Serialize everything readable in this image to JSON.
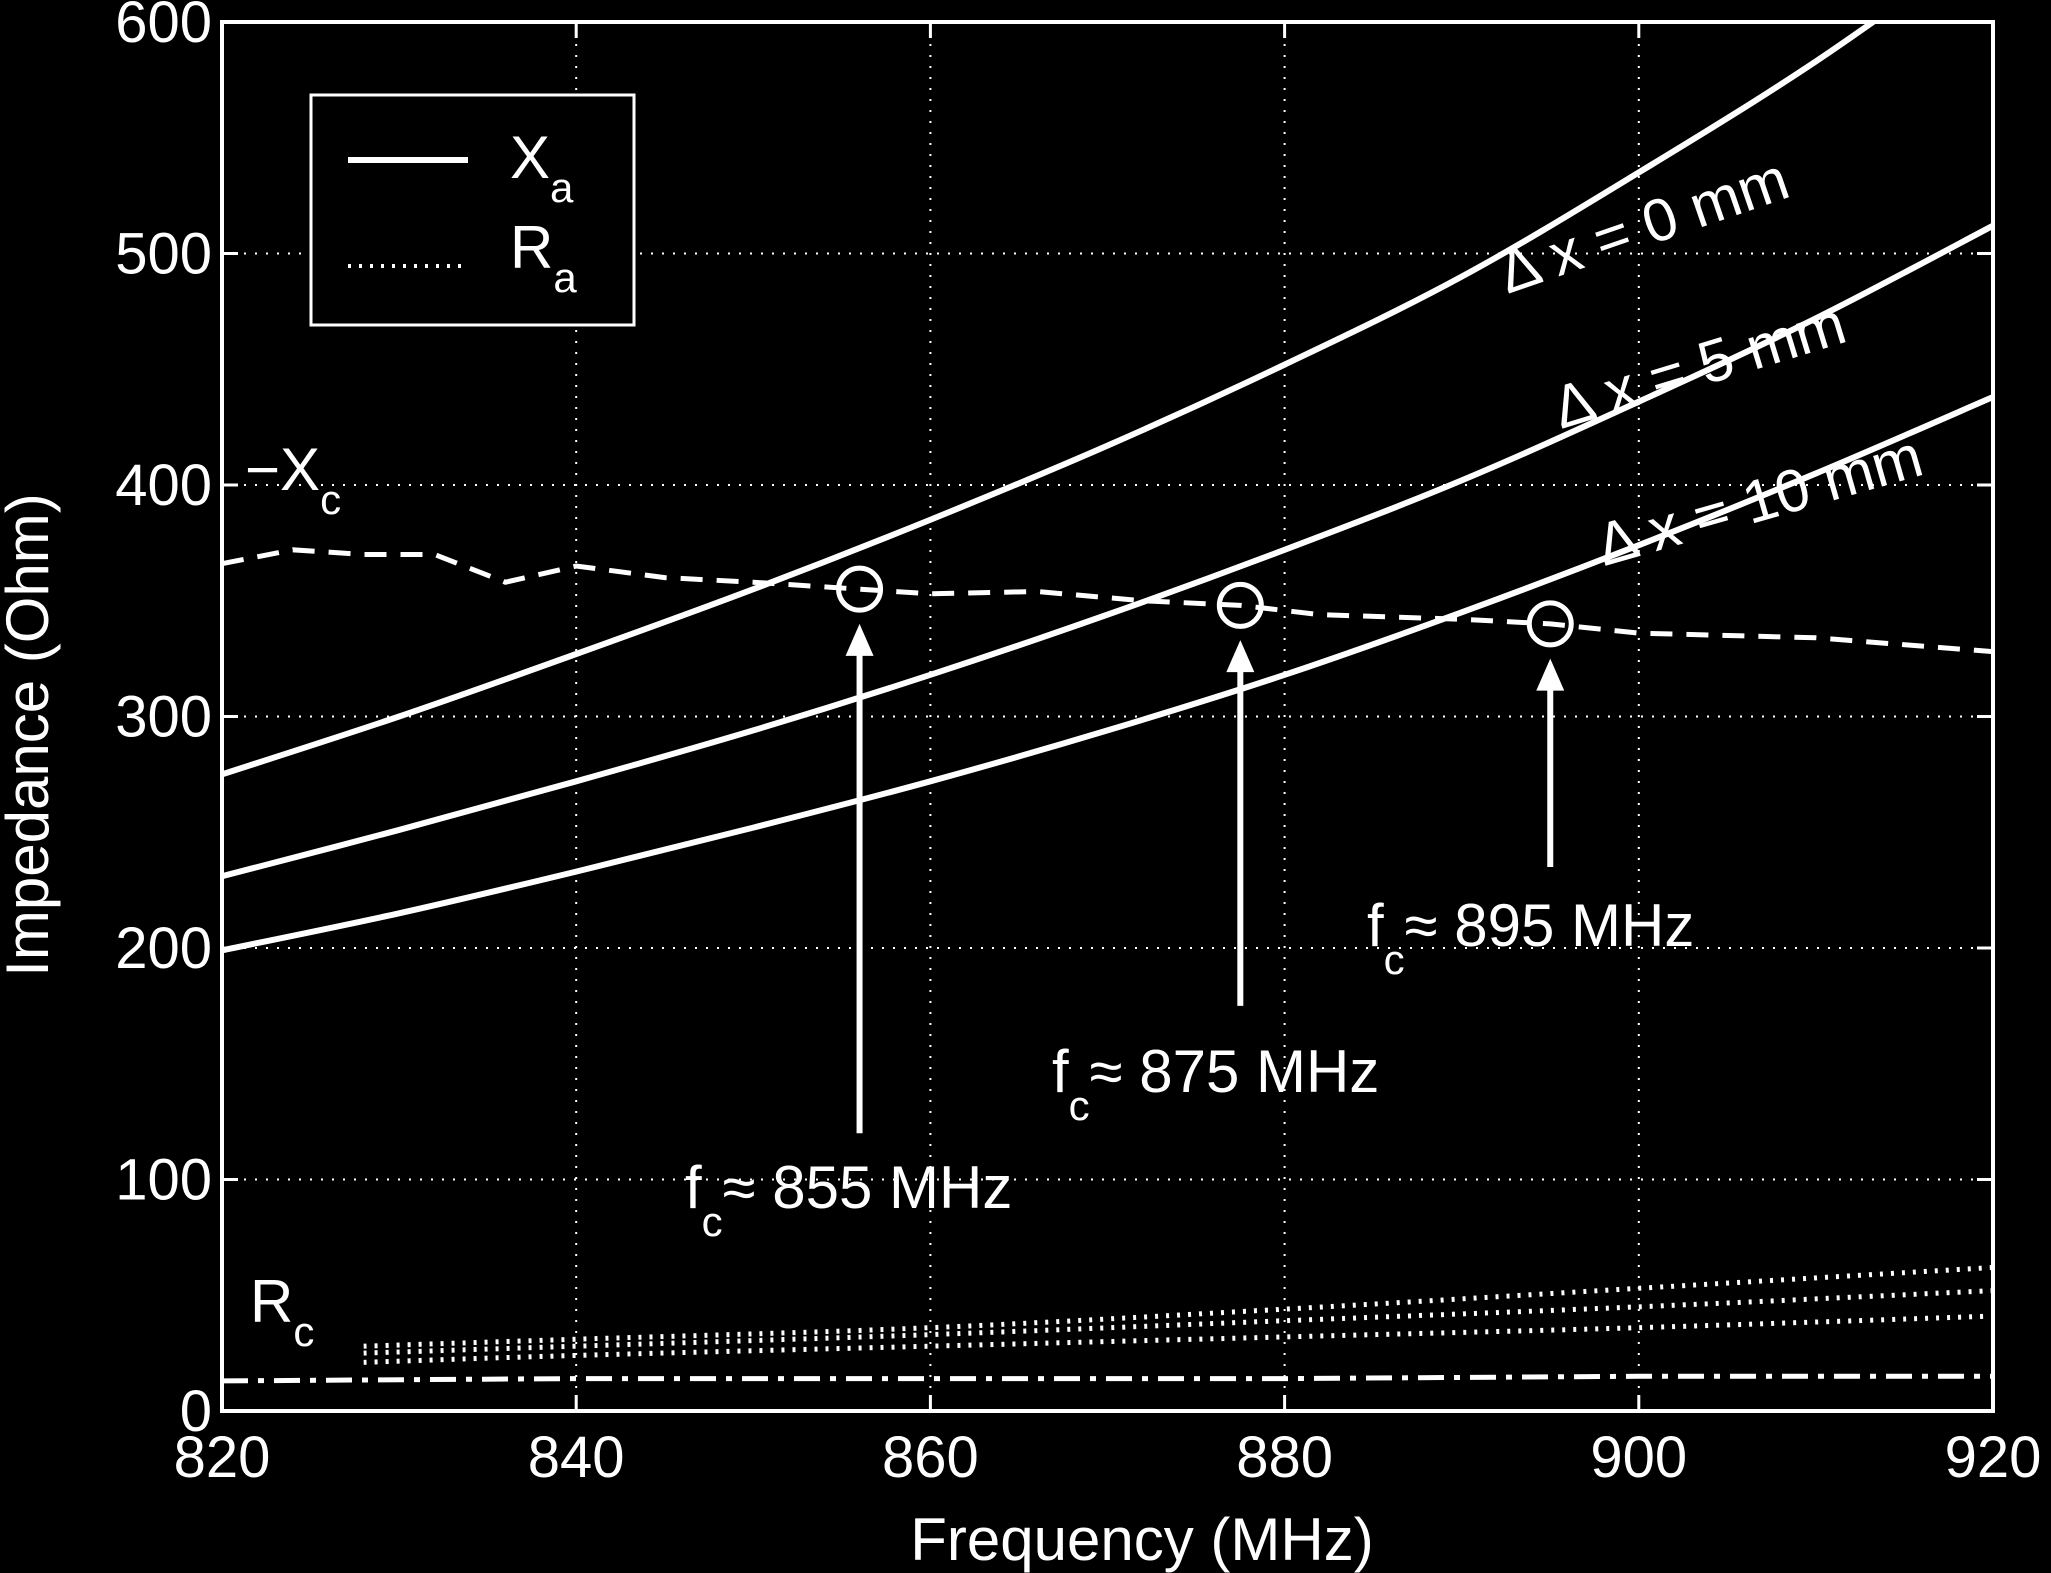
{
  "chart_data": {
    "type": "line",
    "xlabel": "Frequency (MHz)",
    "ylabel": "Impedance (Ohm)",
    "xlim": [
      820,
      920
    ],
    "ylim": [
      0,
      600
    ],
    "xticks": [
      820,
      840,
      860,
      880,
      900,
      920
    ],
    "yticks": [
      0,
      100,
      200,
      300,
      400,
      500,
      600
    ],
    "grid": true,
    "legend_position": "top-left",
    "legend": [
      {
        "main": "X",
        "sub": "a",
        "style": "solid"
      },
      {
        "main": "R",
        "sub": "a",
        "style": "dotted"
      }
    ],
    "colors": {
      "background": "#000000",
      "foreground": "#ffffff"
    },
    "series": [
      {
        "name": "Δ x = 0 mm",
        "group": "Xa",
        "style": "solid",
        "x": [
          820,
          830,
          840,
          850,
          860,
          870,
          880,
          890,
          900,
          910,
          920
        ],
        "y": [
          275,
          300,
          327,
          355,
          385,
          417,
          452,
          490,
          535,
          583,
          637
        ]
      },
      {
        "name": "Δ x = 5 mm",
        "group": "Xa",
        "style": "solid",
        "x": [
          820,
          830,
          840,
          850,
          860,
          870,
          880,
          890,
          900,
          910,
          920
        ],
        "y": [
          231,
          251,
          272,
          294,
          318,
          344,
          372,
          402,
          436,
          472,
          512
        ]
      },
      {
        "name": "Δ x = 10 mm",
        "group": "Xa",
        "style": "solid",
        "x": [
          820,
          830,
          840,
          850,
          860,
          870,
          880,
          890,
          900,
          910,
          920
        ],
        "y": [
          199,
          215,
          233,
          252,
          272,
          294,
          318,
          345,
          374,
          405,
          438
        ]
      },
      {
        "group": "Xc",
        "style": "dashed",
        "x": [
          820,
          824,
          828,
          832,
          836,
          840,
          845,
          850,
          856,
          860,
          866,
          872,
          877.5,
          882,
          890,
          895,
          900,
          910,
          920
        ],
        "y": [
          366,
          372,
          370,
          370,
          358,
          365,
          360,
          358,
          355,
          353,
          354,
          350,
          348,
          344,
          342,
          340,
          336,
          334,
          328
        ]
      },
      {
        "group": "Rc",
        "style": "dashdot",
        "x": [
          820,
          840,
          860,
          880,
          900,
          920
        ],
        "y": [
          13,
          14,
          14,
          14,
          15,
          15
        ]
      },
      {
        "group": "Ra",
        "style": "dotted",
        "name": "Δ x = 0 mm",
        "x": [
          828,
          840,
          860,
          880,
          900,
          920
        ],
        "y": [
          28,
          31,
          36,
          44,
          53,
          62
        ]
      },
      {
        "group": "Ra",
        "style": "dotted",
        "name": "Δ x = 5 mm",
        "x": [
          828,
          840,
          860,
          880,
          900,
          920
        ],
        "y": [
          25,
          28,
          33,
          39,
          45,
          52
        ]
      },
      {
        "group": "Ra",
        "style": "dotted",
        "name": "Δ x = 10 mm",
        "x": [
          828,
          840,
          860,
          880,
          900,
          920
        ],
        "y": [
          21,
          24,
          28,
          32,
          36,
          41
        ]
      }
    ],
    "markers": [
      {
        "x": 856,
        "y": 355
      },
      {
        "x": 877.5,
        "y": 348
      },
      {
        "x": 895,
        "y": 340
      }
    ],
    "annotations": {
      "curve_labels": [
        "Δ x = 0 mm",
        "Δ x = 5 mm",
        "Δ x = 10 mm"
      ],
      "xc_label": {
        "main": "−X",
        "sub": "c"
      },
      "rc_label": {
        "main": "R",
        "sub": "c"
      },
      "fc_labels": [
        {
          "main": "f",
          "sub": "c",
          "text": "≈ 855 MHz",
          "x": 856,
          "arrow_from": 120,
          "arrow_to": 340
        },
        {
          "main": "f",
          "sub": "c",
          "text": "≈ 875 MHz",
          "x": 877.5,
          "arrow_from": 175,
          "arrow_to": 333
        },
        {
          "main": "f",
          "sub": "c",
          "text": "≈ 895 MHz",
          "x": 895,
          "arrow_from": 235,
          "arrow_to": 325
        }
      ]
    }
  }
}
